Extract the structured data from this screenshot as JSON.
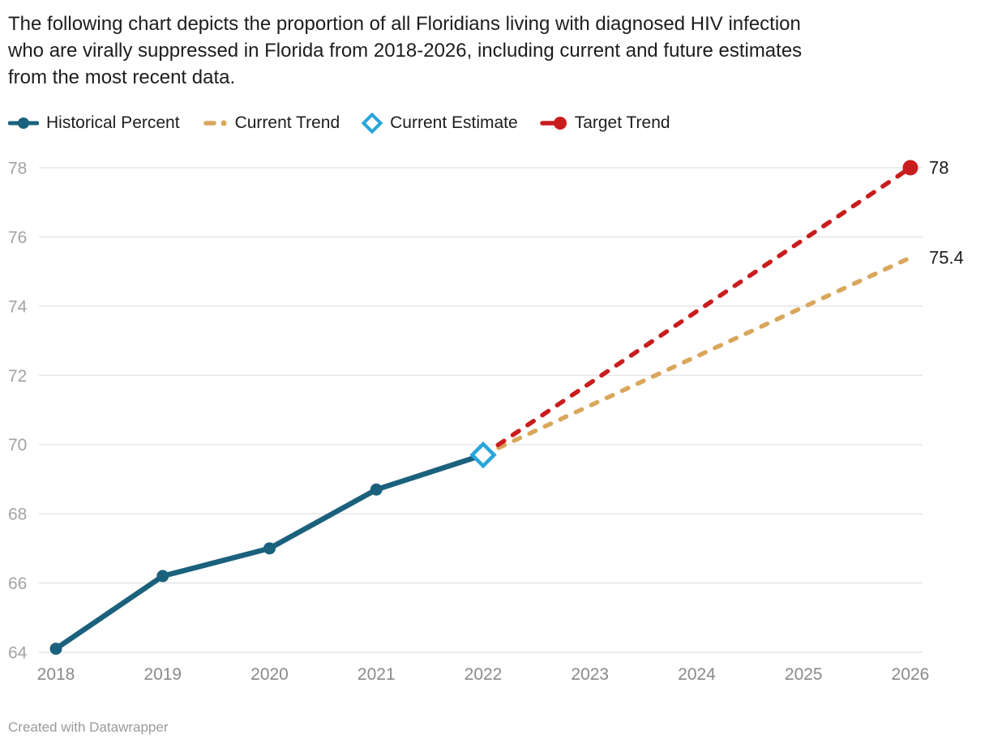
{
  "header": {
    "lines": [
      "The following chart depicts the proportion of all Floridians living with diagnosed HIV infection",
      "who are virally suppressed in Florida from 2018-2026, including current and future estimates",
      "from the most recent data."
    ]
  },
  "footer": {
    "credit": "Created with Datawrapper"
  },
  "colors": {
    "historical": "#1a617d",
    "current_trend": "#d9a75c",
    "current_estimate": "#29a5dc",
    "target_trend": "#c91d1d",
    "grid": "#e2e2e2",
    "y_tick_text": "#a3a3a3",
    "x_tick_text": "#8a8a8a",
    "label_text": "#1d1d1d"
  },
  "chart_data": {
    "type": "line",
    "title": "The following chart depicts the proportion of all Floridians living with diagnosed HIV infection who are virally suppressed in Florida from 2018-2026, including current and future estimates from the most recent data.",
    "xlabel": "",
    "ylabel": "",
    "xlim": [
      2018,
      2026
    ],
    "ylim": [
      64,
      78
    ],
    "yticks": [
      64,
      66,
      68,
      70,
      72,
      74,
      76,
      78
    ],
    "xticks": [
      2018,
      2019,
      2020,
      2021,
      2022,
      2023,
      2024,
      2025,
      2026
    ],
    "grid": "horizontal",
    "legend_position": "top",
    "series": [
      {
        "name": "Historical Percent",
        "type": "line",
        "style": "solid",
        "color": "#1a617d",
        "markers": "circle",
        "x": [
          2018,
          2019,
          2020,
          2021,
          2022
        ],
        "values": [
          64.1,
          66.2,
          67.0,
          68.7,
          69.7
        ]
      },
      {
        "name": "Current Trend",
        "type": "line",
        "style": "dashed",
        "color": "#d9a75c",
        "x": [
          2022,
          2026
        ],
        "values": [
          69.7,
          75.4
        ],
        "end_label": "75.4"
      },
      {
        "name": "Current Estimate",
        "type": "point",
        "marker": "diamond-outline",
        "color": "#29a5dc",
        "x": [
          2022
        ],
        "values": [
          69.7
        ]
      },
      {
        "name": "Target Trend",
        "type": "line",
        "style": "dashed",
        "color": "#c91d1d",
        "end_marker": "circle",
        "x": [
          2022,
          2026
        ],
        "values": [
          69.7,
          78
        ],
        "end_label": "78"
      }
    ]
  }
}
